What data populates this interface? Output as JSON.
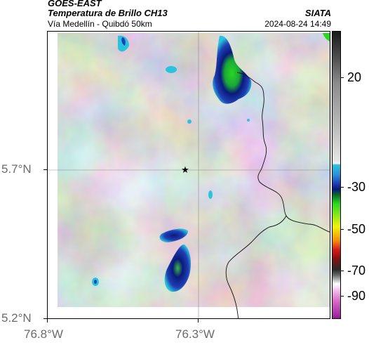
{
  "header": {
    "source": "GOES-EAST",
    "product": "Temperatura de Brillo CH13",
    "route": "Vía Medellín - Quibdó 50km",
    "agency": "SIATA",
    "timestamp": "2024-08-24 14:49"
  },
  "map": {
    "lat_labels": [
      "5.7°N",
      "5.2°N"
    ],
    "lon_labels": [
      "76.8°W",
      "76.3°W"
    ],
    "marker_icon": "star-icon"
  },
  "colorbar": {
    "tick_labels": [
      "20",
      "-30",
      "-50",
      "-70",
      "-90"
    ],
    "colors": {
      "warm_black": "#1a1a1a",
      "gray_mid": "#8c8c8c",
      "light": "#f0f0f0",
      "cyan": "#29c3de",
      "blue": "#1f3fb4",
      "navy": "#0a1a7a",
      "green": "#29d81f",
      "yellow": "#f2f20a",
      "orange": "#f28c0a",
      "red": "#d71c1c",
      "dark": "#2a2a2a",
      "white": "#ffffff",
      "pink": "#d86bc8",
      "purple": "#9a1a9a"
    }
  }
}
